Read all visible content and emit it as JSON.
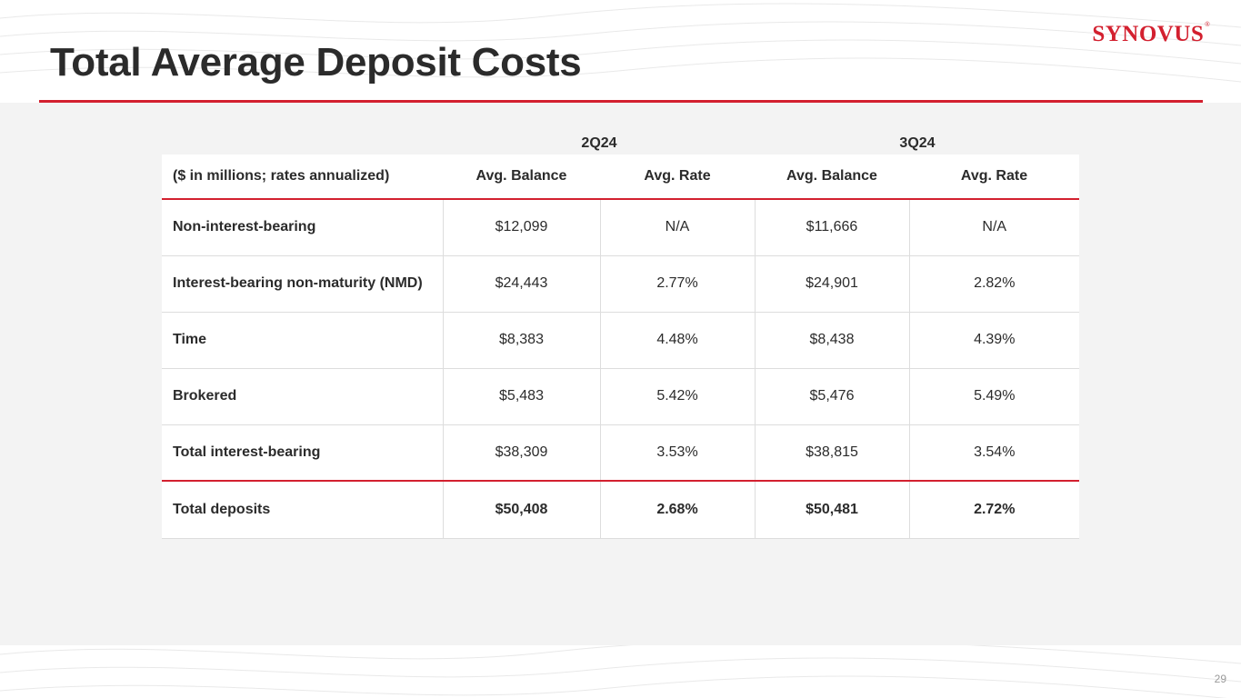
{
  "brand": {
    "logo_text": "SYNOVUS",
    "registered_mark": "®",
    "accent_color": "#d3202f"
  },
  "slide": {
    "title": "Total Average Deposit Costs",
    "page_number": "29"
  },
  "table": {
    "periods": [
      "2Q24",
      "3Q24"
    ],
    "headers": [
      "($ in millions; rates annualized)",
      "Avg. Balance",
      "Avg. Rate",
      "Avg. Balance",
      "Avg. Rate"
    ],
    "rows": [
      {
        "label": "Non-interest-bearing",
        "bal_2q": "$12,099",
        "rate_2q": "N/A",
        "bal_3q": "$11,666",
        "rate_3q": "N/A"
      },
      {
        "label": "Interest-bearing non-maturity (NMD)",
        "bal_2q": "$24,443",
        "rate_2q": "2.77%",
        "bal_3q": "$24,901",
        "rate_3q": "2.82%"
      },
      {
        "label": "Time",
        "bal_2q": "$8,383",
        "rate_2q": "4.48%",
        "bal_3q": "$8,438",
        "rate_3q": "4.39%"
      },
      {
        "label": "Brokered",
        "bal_2q": "$5,483",
        "rate_2q": "5.42%",
        "bal_3q": "$5,476",
        "rate_3q": "5.49%"
      },
      {
        "label": "Total interest-bearing",
        "bal_2q": "$38,309",
        "rate_2q": "3.53%",
        "bal_3q": "$38,815",
        "rate_3q": "3.54%"
      },
      {
        "label": "Total deposits",
        "bal_2q": "$50,408",
        "rate_2q": "2.68%",
        "bal_3q": "$50,481",
        "rate_3q": "2.72%"
      }
    ]
  }
}
